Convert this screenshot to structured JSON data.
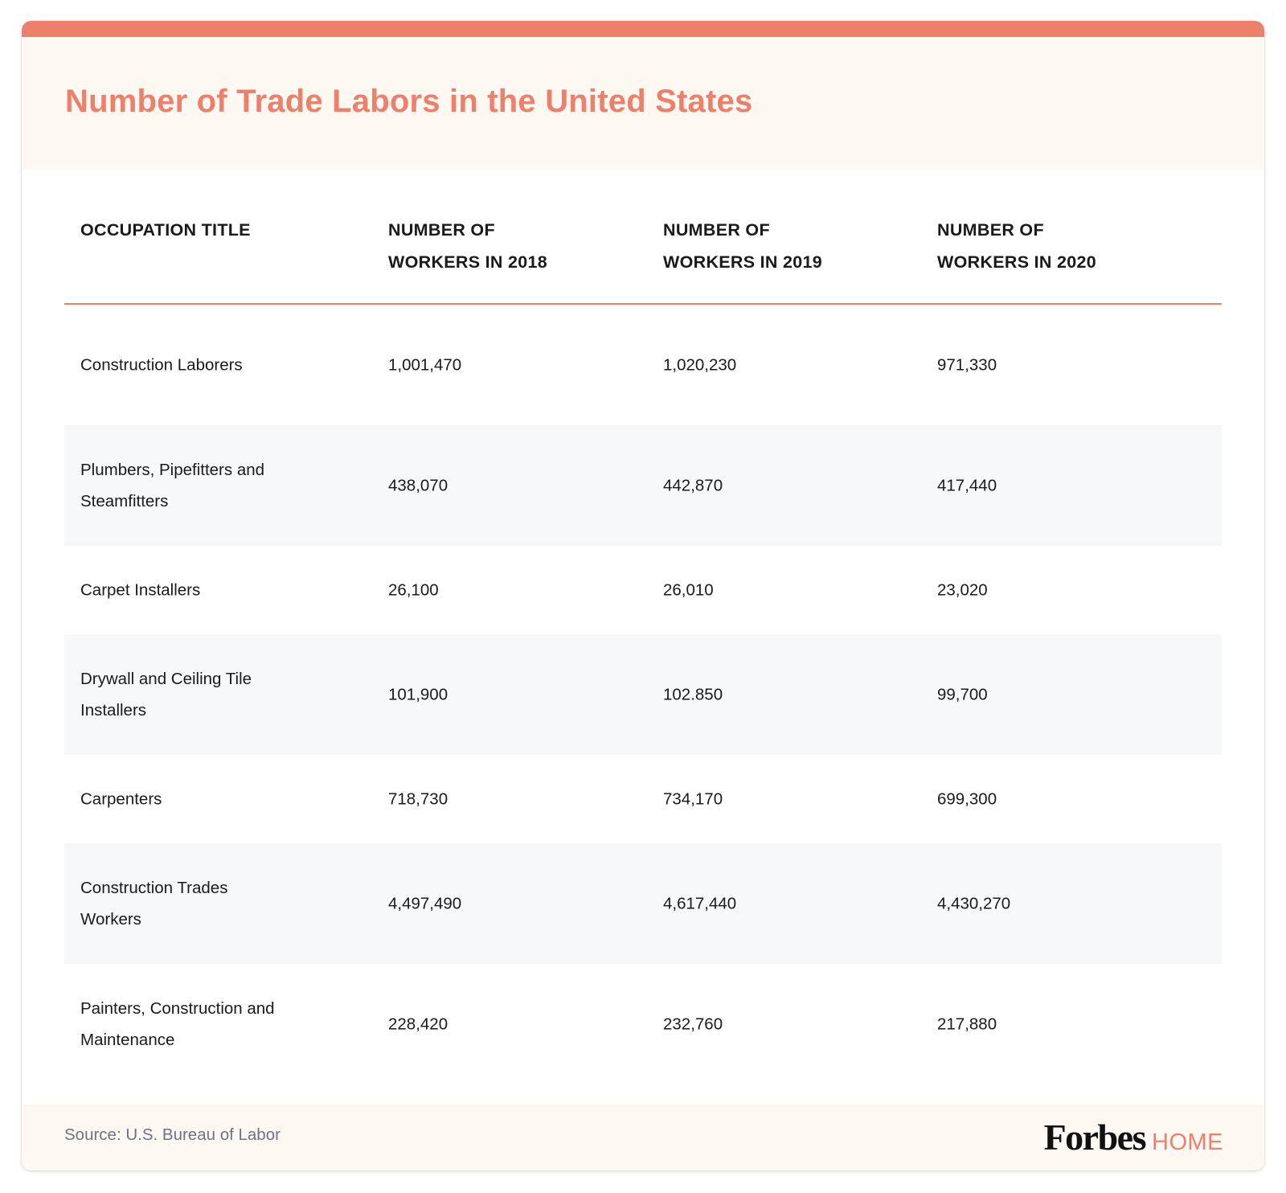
{
  "title": "Number of Trade Labors in the United States",
  "colors": {
    "accent": "#ec806a",
    "header_bg": "#fdf9f2",
    "row_shade": "#f7f8fa",
    "source_text": "#6b7384"
  },
  "chart_data": {
    "type": "table",
    "title": "Number of Trade Labors in the United States",
    "columns": [
      "OCCUPATION TITLE",
      "NUMBER OF WORKERS IN 2018",
      "NUMBER OF WORKERS IN 2019",
      "NUMBER OF WORKERS IN 2020"
    ],
    "rows": [
      [
        "Construction Laborers",
        "1,001,470",
        "1,020,230",
        "971,330"
      ],
      [
        "Plumbers, Pipefitters and Steamfitters",
        "438,070",
        "442,870",
        "417,440"
      ],
      [
        "Carpet Installers",
        "26,100",
        "26,010",
        "23,020"
      ],
      [
        "Drywall and Ceiling Tile Installers",
        "101,900",
        "102.850",
        "99,700"
      ],
      [
        "Carpenters",
        "718,730",
        "734,170",
        "699,300"
      ],
      [
        "Construction Trades Workers",
        "4,497,490",
        "4,617,440",
        "4,430,270"
      ],
      [
        "Painters, Construction and Maintenance",
        "228,420",
        "232,760",
        "217,880"
      ]
    ]
  },
  "footer": {
    "source": "Source: U.S. Bureau of Labor",
    "brand_main": "Forbes",
    "brand_sub": "HOME"
  }
}
